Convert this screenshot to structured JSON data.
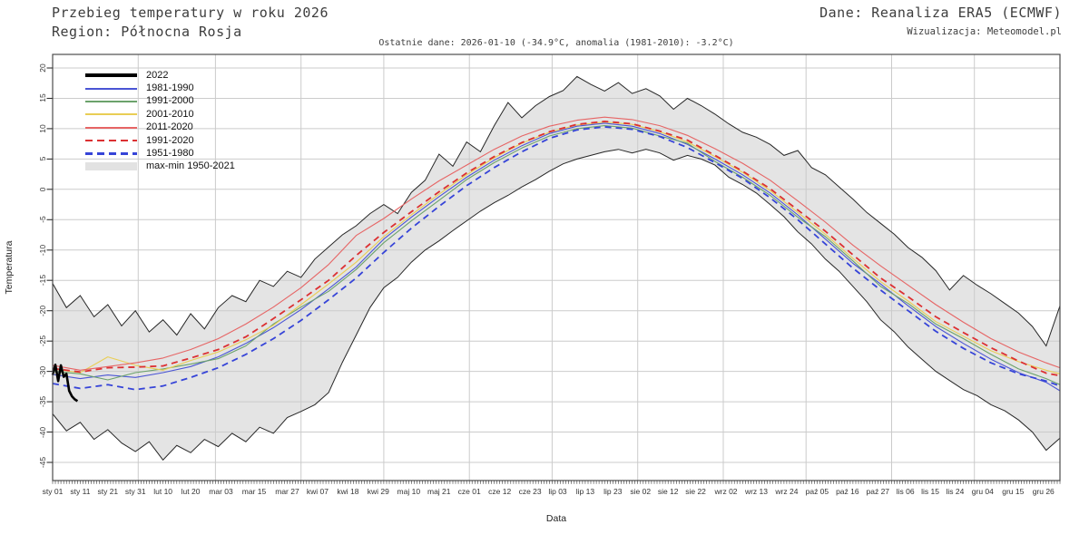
{
  "header": {
    "title": "Przebieg temperatury w roku 2026",
    "region": "Region: Północna Rosja",
    "source": "Dane: Reanaliza ERA5 (ECMWF)",
    "visualization": "Wizualizacja: Meteomodel.pl",
    "last_data": "Ostatnie dane: 2026-01-10 (-34.9°C, anomalia (1981-2010): -3.2°C)"
  },
  "axes": {
    "x_label": "Data",
    "y_label": "Temperatura",
    "y_ticks": [
      20,
      15,
      10,
      5,
      0,
      -5,
      -10,
      -15,
      -20,
      -25,
      -30,
      -35,
      -40,
      -45
    ],
    "x_ticks": [
      {
        "label": "sty 01",
        "day": 0
      },
      {
        "label": "sty 11",
        "day": 10
      },
      {
        "label": "sty 21",
        "day": 20
      },
      {
        "label": "sty 31",
        "day": 30
      },
      {
        "label": "lut 10",
        "day": 40
      },
      {
        "label": "lut 20",
        "day": 50
      },
      {
        "label": "mar 03",
        "day": 61
      },
      {
        "label": "mar 15",
        "day": 73
      },
      {
        "label": "mar 27",
        "day": 85
      },
      {
        "label": "kwi 07",
        "day": 96
      },
      {
        "label": "kwi 18",
        "day": 107
      },
      {
        "label": "kwi 29",
        "day": 118
      },
      {
        "label": "maj 10",
        "day": 129
      },
      {
        "label": "maj 21",
        "day": 140
      },
      {
        "label": "cze 01",
        "day": 151
      },
      {
        "label": "cze 12",
        "day": 162
      },
      {
        "label": "cze 23",
        "day": 173
      },
      {
        "label": "lip 03",
        "day": 183
      },
      {
        "label": "lip 13",
        "day": 193
      },
      {
        "label": "lip 23",
        "day": 203
      },
      {
        "label": "sie 02",
        "day": 213
      },
      {
        "label": "sie 12",
        "day": 223
      },
      {
        "label": "sie 22",
        "day": 233
      },
      {
        "label": "wrz 02",
        "day": 244
      },
      {
        "label": "wrz 13",
        "day": 255
      },
      {
        "label": "wrz 24",
        "day": 266
      },
      {
        "label": "paź 05",
        "day": 277
      },
      {
        "label": "paź 16",
        "day": 288
      },
      {
        "label": "paź 27",
        "day": 299
      },
      {
        "label": "lis 06",
        "day": 309
      },
      {
        "label": "lis 15",
        "day": 318
      },
      {
        "label": "lis 24",
        "day": 327
      },
      {
        "label": "gru 04",
        "day": 337
      },
      {
        "label": "gru 15",
        "day": 348
      },
      {
        "label": "gru 26",
        "day": 359
      }
    ]
  },
  "legend": {
    "items": [
      {
        "label": "2022",
        "style": "solid",
        "color": "#000000",
        "thickness": 4
      },
      {
        "label": "1981-1990",
        "style": "solid",
        "color": "#4a55d4",
        "thickness": 2
      },
      {
        "label": "1991-2000",
        "style": "solid",
        "color": "#6ba26b",
        "thickness": 2
      },
      {
        "label": "2001-2010",
        "style": "solid",
        "color": "#e9ce55",
        "thickness": 2
      },
      {
        "label": "2011-2020",
        "style": "solid",
        "color": "#e66565",
        "thickness": 2
      },
      {
        "label": "1991-2020",
        "style": "dashed",
        "color": "#dc3032",
        "thickness": 2.5
      },
      {
        "label": "1951-1980",
        "style": "dashed",
        "color": "#3644d8",
        "thickness": 2.5
      },
      {
        "label": "max-min 1950-2021",
        "style": "band",
        "color": "#e2e2e2",
        "thickness": 9
      }
    ]
  },
  "chart_data": {
    "type": "line",
    "title": "Przebieg temperatury w roku 2026 — Region: Północna Rosja",
    "xlabel": "Data",
    "ylabel": "Temperatura",
    "x_unit": "day_of_year",
    "xlim": [
      0,
      365
    ],
    "ylim": [
      -48,
      22
    ],
    "grid": {
      "horizontal_step_degC": 5,
      "vertical": "month_starts"
    },
    "month_start_days": [
      31,
      59,
      90,
      120,
      151,
      181,
      212,
      243,
      273,
      304,
      334
    ],
    "legend_position": "top-left",
    "band": {
      "name": "max-min 1950-2021",
      "fill": "#e4e4e4",
      "edge": "#262626",
      "days": [
        0,
        5,
        10,
        15,
        20,
        25,
        30,
        35,
        40,
        45,
        50,
        55,
        60,
        65,
        70,
        75,
        80,
        85,
        90,
        95,
        100,
        105,
        110,
        115,
        120,
        125,
        130,
        135,
        140,
        145,
        150,
        155,
        160,
        165,
        170,
        175,
        180,
        185,
        190,
        195,
        200,
        205,
        210,
        215,
        220,
        225,
        230,
        235,
        240,
        245,
        250,
        255,
        260,
        265,
        270,
        275,
        280,
        285,
        290,
        295,
        300,
        305,
        310,
        315,
        320,
        325,
        330,
        335,
        340,
        345,
        350,
        355,
        360,
        365
      ],
      "max": [
        -15.5,
        -19.5,
        -17.5,
        -21.0,
        -19.0,
        -22.5,
        -20.0,
        -23.5,
        -21.5,
        -24.0,
        -20.5,
        -23.0,
        -19.5,
        -17.5,
        -18.5,
        -15.0,
        -16.0,
        -13.5,
        -14.5,
        -11.5,
        -9.5,
        -7.5,
        -6.0,
        -4.0,
        -2.5,
        -4.0,
        -0.5,
        1.5,
        5.8,
        3.8,
        7.8,
        6.2,
        10.5,
        14.3,
        11.8,
        13.8,
        15.3,
        16.3,
        18.6,
        17.3,
        16.2,
        17.6,
        15.8,
        16.6,
        15.4,
        13.2,
        15.0,
        13.8,
        12.4,
        10.8,
        9.4,
        8.6,
        7.4,
        5.6,
        6.4,
        3.6,
        2.4,
        0.4,
        -1.6,
        -3.8,
        -5.6,
        -7.4,
        -9.6,
        -11.2,
        -13.4,
        -16.6,
        -14.2,
        -15.8,
        -17.2,
        -18.8,
        -20.4,
        -22.6,
        -25.8,
        -19.2
      ],
      "min": [
        -37.0,
        -39.8,
        -38.4,
        -41.2,
        -39.6,
        -41.8,
        -43.2,
        -41.6,
        -44.6,
        -42.2,
        -43.4,
        -41.2,
        -42.4,
        -40.2,
        -41.6,
        -39.2,
        -40.2,
        -37.6,
        -36.6,
        -35.5,
        -33.5,
        -28.5,
        -24.0,
        -19.5,
        -16.2,
        -14.5,
        -12.0,
        -10.0,
        -8.5,
        -6.8,
        -5.2,
        -3.6,
        -2.2,
        -1.0,
        0.4,
        1.6,
        3.0,
        4.2,
        5.0,
        5.6,
        6.2,
        6.6,
        6.0,
        6.6,
        6.0,
        4.8,
        5.6,
        5.0,
        4.0,
        2.0,
        0.8,
        -0.6,
        -2.5,
        -4.5,
        -7.0,
        -9.0,
        -11.5,
        -13.5,
        -16.0,
        -18.5,
        -21.5,
        -23.5,
        -26.0,
        -28.0,
        -30.0,
        -31.5,
        -33.0,
        -34.0,
        -35.5,
        -36.5,
        -38.0,
        -40.0,
        -43.0,
        -41.0
      ]
    },
    "climatology_days": [
      0,
      10,
      20,
      30,
      40,
      50,
      60,
      70,
      80,
      90,
      100,
      110,
      120,
      130,
      140,
      150,
      160,
      170,
      180,
      190,
      200,
      210,
      220,
      230,
      240,
      250,
      260,
      270,
      280,
      290,
      300,
      310,
      320,
      330,
      340,
      350,
      360,
      365
    ],
    "series": [
      {
        "name": "1981-1990",
        "color": "#4a55d4",
        "width": 1.1,
        "dash": null,
        "values": [
          -30.5,
          -31.2,
          -30.6,
          -31.0,
          -30.2,
          -29.2,
          -27.6,
          -25.4,
          -22.8,
          -19.8,
          -16.4,
          -12.8,
          -8.2,
          -4.6,
          -1.2,
          2.0,
          4.8,
          7.2,
          9.2,
          10.4,
          10.9,
          10.4,
          9.2,
          7.4,
          5.0,
          2.4,
          -0.6,
          -4.2,
          -8.2,
          -12.2,
          -15.6,
          -19.2,
          -22.6,
          -25.4,
          -28.0,
          -30.2,
          -31.8,
          -33.2
        ]
      },
      {
        "name": "1991-2000",
        "color": "#6ba26b",
        "width": 1.1,
        "dash": null,
        "values": [
          -30.0,
          -30.4,
          -31.4,
          -30.2,
          -29.6,
          -28.8,
          -27.9,
          -25.8,
          -22.2,
          -19.4,
          -16.8,
          -13.2,
          -8.8,
          -5.2,
          -1.8,
          1.6,
          4.4,
          6.8,
          8.8,
          10.0,
          10.5,
          10.1,
          8.8,
          7.6,
          4.6,
          2.0,
          -1.0,
          -4.6,
          -7.8,
          -11.8,
          -16.0,
          -18.8,
          -22.2,
          -24.6,
          -27.2,
          -29.6,
          -31.2,
          -32.2
        ]
      },
      {
        "name": "2001-2010",
        "color": "#e9ce55",
        "width": 1.1,
        "dash": null,
        "values": [
          -29.6,
          -30.2,
          -27.6,
          -29.0,
          -29.8,
          -28.2,
          -26.8,
          -24.8,
          -22.4,
          -19.0,
          -15.6,
          -12.0,
          -7.8,
          -4.2,
          -0.8,
          2.4,
          5.2,
          7.6,
          9.4,
          10.6,
          11.1,
          10.7,
          9.5,
          7.8,
          5.4,
          2.8,
          -0.2,
          -3.8,
          -7.4,
          -11.4,
          -15.2,
          -18.4,
          -21.8,
          -24.2,
          -26.6,
          -28.4,
          -29.8,
          -30.4
        ]
      },
      {
        "name": "2011-2020",
        "color": "#e66565",
        "width": 1.1,
        "dash": null,
        "values": [
          -29.0,
          -29.8,
          -29.2,
          -28.6,
          -27.8,
          -26.4,
          -24.6,
          -22.2,
          -19.4,
          -16.2,
          -12.4,
          -7.6,
          -4.8,
          -1.6,
          1.4,
          4.0,
          6.6,
          8.8,
          10.4,
          11.4,
          11.9,
          11.5,
          10.5,
          8.9,
          6.7,
          4.3,
          1.5,
          -1.9,
          -5.4,
          -9.2,
          -12.6,
          -15.8,
          -19.0,
          -21.9,
          -24.6,
          -26.8,
          -28.6,
          -29.4
        ]
      },
      {
        "name": "1991-2020",
        "color": "#dc3032",
        "width": 1.8,
        "dash": "7 5",
        "values": [
          -29.5,
          -30.1,
          -29.4,
          -29.3,
          -29.1,
          -27.8,
          -26.4,
          -24.3,
          -21.3,
          -18.2,
          -15.0,
          -10.9,
          -7.1,
          -3.7,
          -0.4,
          2.7,
          5.4,
          7.7,
          9.5,
          10.7,
          11.2,
          10.8,
          9.6,
          8.1,
          5.6,
          3.0,
          0.1,
          -3.4,
          -6.9,
          -10.8,
          -14.6,
          -17.7,
          -21.0,
          -23.6,
          -26.1,
          -28.3,
          -30.3,
          -30.7
        ]
      },
      {
        "name": "1951-1980",
        "color": "#3644d8",
        "width": 1.8,
        "dash": "7 5",
        "values": [
          -32.0,
          -32.8,
          -32.2,
          -33.0,
          -32.4,
          -31.0,
          -29.4,
          -27.2,
          -24.6,
          -21.6,
          -18.2,
          -14.6,
          -10.4,
          -6.4,
          -2.8,
          0.6,
          3.6,
          6.2,
          8.4,
          9.8,
          10.3,
          9.9,
          8.7,
          6.9,
          4.4,
          1.8,
          -1.4,
          -5.0,
          -9.0,
          -13.0,
          -16.6,
          -20.0,
          -23.4,
          -26.2,
          -28.6,
          -30.4,
          -31.6,
          -32.4
        ]
      },
      {
        "name": "2022",
        "color": "#000000",
        "width": 2.6,
        "dash": null,
        "days": [
          0,
          1,
          2,
          3,
          4,
          5,
          6,
          7,
          8,
          9
        ],
        "values": [
          -30.6,
          -28.9,
          -31.6,
          -29.0,
          -30.9,
          -30.4,
          -33.2,
          -34.1,
          -34.6,
          -34.9
        ]
      }
    ]
  }
}
